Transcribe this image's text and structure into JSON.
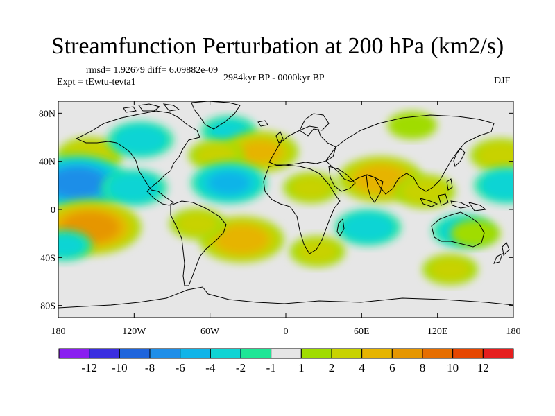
{
  "chart_data": {
    "type": "heatmap",
    "title": "Streamfunction Perturbation at 200 hPa (km2/s)",
    "stats": "rmsd= 1.92679 diff= 6.09882e-09",
    "experiment": "Expt = tEwtu-tevta1",
    "period": "2984kyr BP - 0000kyr BP",
    "season": "DJF",
    "x_axis": {
      "range": [
        -180,
        180
      ],
      "ticks": [
        -180,
        -120,
        -60,
        0,
        60,
        120,
        180
      ],
      "tick_labels": [
        "180",
        "120W",
        "60W",
        "0",
        "60E",
        "120E",
        "180"
      ]
    },
    "y_axis": {
      "range": [
        -90,
        90
      ],
      "ticks": [
        80,
        40,
        0,
        -40,
        -80
      ],
      "tick_labels": [
        "80N",
        "40N",
        "0",
        "40S",
        "80S"
      ]
    },
    "colorbar": {
      "boundary_labels": [
        "-12",
        "-10",
        "-8",
        "-6",
        "-4",
        "-2",
        "-1",
        "1",
        "2",
        "4",
        "6",
        "8",
        "10",
        "12"
      ],
      "colors": [
        "#8a1ef0",
        "#3a2ee0",
        "#1e64dc",
        "#1e8ee8",
        "#10b4e8",
        "#10d4d4",
        "#1ee696",
        "#e6e6e6",
        "#a0dc00",
        "#c8d200",
        "#e6b400",
        "#e69600",
        "#e66e00",
        "#e64600",
        "#e61e1e"
      ]
    },
    "anomalies": [
      {
        "lon": 100,
        "lat": 70,
        "value": 1.5
      },
      {
        "lon": -155,
        "lat": 45,
        "value": 3
      },
      {
        "lon": -115,
        "lat": 58,
        "value": -3
      },
      {
        "lon": -45,
        "lat": 65,
        "value": -2
      },
      {
        "lon": -20,
        "lat": 48,
        "value": 4
      },
      {
        "lon": -55,
        "lat": 45,
        "value": 2
      },
      {
        "lon": 170,
        "lat": 45,
        "value": 2.5
      },
      {
        "lon": -165,
        "lat": 22,
        "value": -7
      },
      {
        "lon": -120,
        "lat": 18,
        "value": -3
      },
      {
        "lon": -45,
        "lat": 22,
        "value": -4
      },
      {
        "lon": 75,
        "lat": 25,
        "value": 5
      },
      {
        "lon": 20,
        "lat": 18,
        "value": 2
      },
      {
        "lon": 110,
        "lat": 15,
        "value": 2.5
      },
      {
        "lon": 175,
        "lat": 20,
        "value": -3
      },
      {
        "lon": -155,
        "lat": -15,
        "value": 7
      },
      {
        "lon": -35,
        "lat": -25,
        "value": 5
      },
      {
        "lon": -70,
        "lat": -12,
        "value": 2
      },
      {
        "lon": 65,
        "lat": -15,
        "value": -3
      },
      {
        "lon": 140,
        "lat": -18,
        "value": -2.5
      },
      {
        "lon": -175,
        "lat": -30,
        "value": -2
      },
      {
        "lon": 25,
        "lat": -35,
        "value": 2
      },
      {
        "lon": 130,
        "lat": -50,
        "value": 2
      },
      {
        "lon": 150,
        "lat": -20,
        "value": 1.5
      }
    ]
  }
}
